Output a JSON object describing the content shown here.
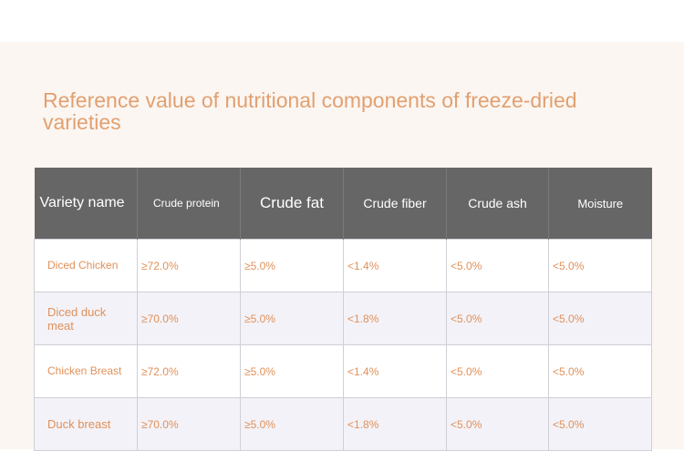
{
  "title": "Reference value of nutritional components of freeze-dried varieties",
  "table": {
    "headers": [
      "Variety name",
      "Crude protein",
      "Crude fat",
      "Crude fiber",
      "Crude ash",
      "Moisture"
    ],
    "rows": [
      [
        "Diced Chicken",
        "≥72.0%",
        "≥5.0%",
        "<1.4%",
        "<5.0%",
        "<5.0%"
      ],
      [
        "Diced duck meat",
        "≥70.0%",
        "≥5.0%",
        "<1.8%",
        "<5.0%",
        "<5.0%"
      ],
      [
        "Chicken Breast",
        "≥72.0%",
        "≥5.0%",
        "<1.4%",
        "<5.0%",
        "<5.0%"
      ],
      [
        "Duck breast",
        "≥70.0%",
        "≥5.0%",
        "<1.8%",
        "<5.0%",
        "<5.0%"
      ]
    ]
  },
  "colors": {
    "title": "#e2a070",
    "header_bg": "#666666",
    "cell_text": "#e0915a",
    "panel_bg": "#fbf6f2"
  }
}
